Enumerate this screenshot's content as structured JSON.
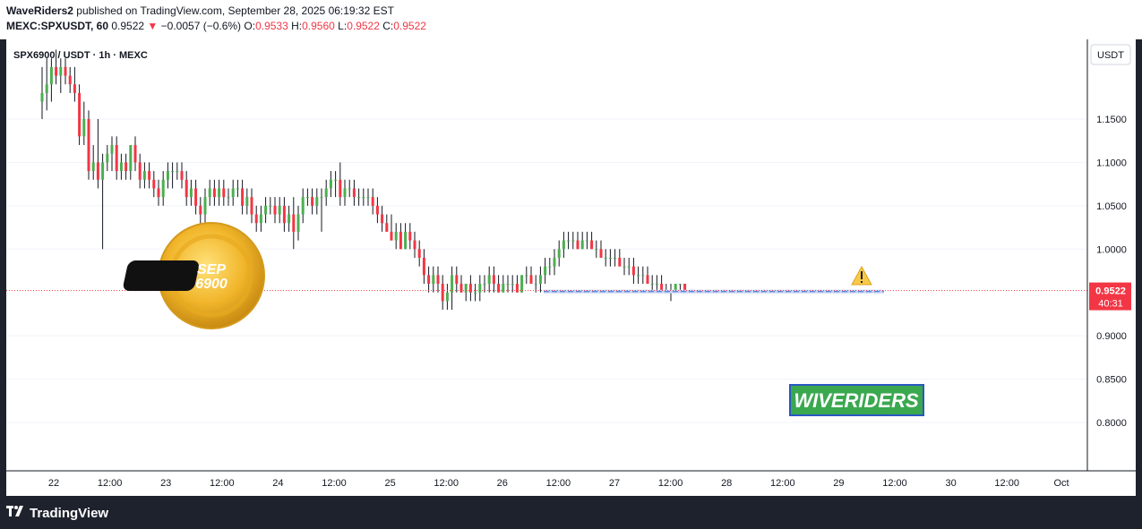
{
  "header": {
    "publisher": "WaveRiders2",
    "published_text": " published on TradingView.com, September 28, 2025 06:19:32 EST",
    "symbol": "MEXC:SPXUSDT, 60",
    "price": "0.9522",
    "change_arrow": "▼",
    "change": "−0.0057 (−0.6%)",
    "o_label": "O:",
    "o_value": "0.9533",
    "h_label": "H:",
    "h_value": "0.9560",
    "l_label": "L:",
    "l_value": "0.9522",
    "c_label": "C:",
    "c_value": "0.9522"
  },
  "footer": {
    "brand": "TradingView"
  },
  "chart_data": {
    "type": "candlestick",
    "title": "SPX6900 / USDT · 1h · MEXC",
    "currency": "USDT",
    "y_ticks": [
      "1.1500",
      "1.1000",
      "1.0500",
      "1.0000",
      "0.9000",
      "0.8500",
      "0.8000"
    ],
    "x_ticks": [
      "22",
      "12:00",
      "23",
      "12:00",
      "24",
      "12:00",
      "25",
      "12:00",
      "26",
      "12:00",
      "27",
      "12:00",
      "28",
      "12:00",
      "29",
      "12:00",
      "30",
      "12:00",
      "Oct"
    ],
    "ylim": [
      0.75,
      1.19
    ],
    "last_price": {
      "value": 0.9522,
      "label": "0.9522",
      "countdown": "40:31"
    },
    "support_level": 0.951,
    "logo_text_1": "SEP",
    "logo_text_2": "6900",
    "watermark": "WIVERIDERS",
    "candles": [
      {
        "o": 1.17,
        "h": 1.21,
        "l": 1.15,
        "c": 1.18
      },
      {
        "o": 1.18,
        "h": 1.22,
        "l": 1.16,
        "c": 1.19
      },
      {
        "o": 1.19,
        "h": 1.22,
        "l": 1.17,
        "c": 1.21
      },
      {
        "o": 1.21,
        "h": 1.23,
        "l": 1.19,
        "c": 1.2
      },
      {
        "o": 1.2,
        "h": 1.22,
        "l": 1.18,
        "c": 1.21
      },
      {
        "o": 1.21,
        "h": 1.22,
        "l": 1.19,
        "c": 1.2
      },
      {
        "o": 1.2,
        "h": 1.21,
        "l": 1.18,
        "c": 1.19
      },
      {
        "o": 1.19,
        "h": 1.21,
        "l": 1.17,
        "c": 1.18
      },
      {
        "o": 1.18,
        "h": 1.19,
        "l": 1.12,
        "c": 1.13
      },
      {
        "o": 1.13,
        "h": 1.17,
        "l": 1.12,
        "c": 1.15
      },
      {
        "o": 1.15,
        "h": 1.16,
        "l": 1.08,
        "c": 1.09
      },
      {
        "o": 1.09,
        "h": 1.12,
        "l": 1.08,
        "c": 1.1
      },
      {
        "o": 1.1,
        "h": 1.15,
        "l": 1.07,
        "c": 1.08
      },
      {
        "o": 1.08,
        "h": 1.11,
        "l": 1.0,
        "c": 1.1
      },
      {
        "o": 1.1,
        "h": 1.12,
        "l": 1.09,
        "c": 1.11
      },
      {
        "o": 1.11,
        "h": 1.13,
        "l": 1.09,
        "c": 1.12
      },
      {
        "o": 1.12,
        "h": 1.13,
        "l": 1.08,
        "c": 1.09
      },
      {
        "o": 1.09,
        "h": 1.11,
        "l": 1.08,
        "c": 1.1
      },
      {
        "o": 1.1,
        "h": 1.11,
        "l": 1.08,
        "c": 1.09
      },
      {
        "o": 1.09,
        "h": 1.12,
        "l": 1.08,
        "c": 1.12
      },
      {
        "o": 1.12,
        "h": 1.13,
        "l": 1.09,
        "c": 1.1
      },
      {
        "o": 1.1,
        "h": 1.11,
        "l": 1.07,
        "c": 1.08
      },
      {
        "o": 1.08,
        "h": 1.1,
        "l": 1.07,
        "c": 1.09
      },
      {
        "o": 1.09,
        "h": 1.1,
        "l": 1.07,
        "c": 1.08
      },
      {
        "o": 1.08,
        "h": 1.09,
        "l": 1.06,
        "c": 1.07
      },
      {
        "o": 1.07,
        "h": 1.08,
        "l": 1.05,
        "c": 1.06
      },
      {
        "o": 1.06,
        "h": 1.09,
        "l": 1.05,
        "c": 1.08
      },
      {
        "o": 1.08,
        "h": 1.1,
        "l": 1.07,
        "c": 1.09
      },
      {
        "o": 1.09,
        "h": 1.1,
        "l": 1.07,
        "c": 1.09
      },
      {
        "o": 1.09,
        "h": 1.1,
        "l": 1.08,
        "c": 1.09
      },
      {
        "o": 1.09,
        "h": 1.1,
        "l": 1.07,
        "c": 1.08
      },
      {
        "o": 1.08,
        "h": 1.09,
        "l": 1.05,
        "c": 1.06
      },
      {
        "o": 1.06,
        "h": 1.08,
        "l": 1.05,
        "c": 1.07
      },
      {
        "o": 1.07,
        "h": 1.08,
        "l": 1.04,
        "c": 1.05
      },
      {
        "o": 1.05,
        "h": 1.06,
        "l": 1.01,
        "c": 1.04
      },
      {
        "o": 1.04,
        "h": 1.07,
        "l": 1.03,
        "c": 1.06
      },
      {
        "o": 1.06,
        "h": 1.08,
        "l": 1.05,
        "c": 1.07
      },
      {
        "o": 1.07,
        "h": 1.08,
        "l": 1.05,
        "c": 1.06
      },
      {
        "o": 1.06,
        "h": 1.08,
        "l": 1.05,
        "c": 1.07
      },
      {
        "o": 1.07,
        "h": 1.08,
        "l": 1.05,
        "c": 1.06
      },
      {
        "o": 1.06,
        "h": 1.07,
        "l": 1.05,
        "c": 1.06
      },
      {
        "o": 1.06,
        "h": 1.08,
        "l": 1.05,
        "c": 1.07
      },
      {
        "o": 1.07,
        "h": 1.08,
        "l": 1.06,
        "c": 1.07
      },
      {
        "o": 1.07,
        "h": 1.08,
        "l": 1.04,
        "c": 1.05
      },
      {
        "o": 1.05,
        "h": 1.07,
        "l": 1.04,
        "c": 1.06
      },
      {
        "o": 1.06,
        "h": 1.07,
        "l": 1.03,
        "c": 1.04
      },
      {
        "o": 1.04,
        "h": 1.05,
        "l": 1.02,
        "c": 1.03
      },
      {
        "o": 1.03,
        "h": 1.05,
        "l": 1.02,
        "c": 1.04
      },
      {
        "o": 1.04,
        "h": 1.06,
        "l": 1.03,
        "c": 1.05
      },
      {
        "o": 1.05,
        "h": 1.06,
        "l": 1.04,
        "c": 1.05
      },
      {
        "o": 1.05,
        "h": 1.06,
        "l": 1.03,
        "c": 1.04
      },
      {
        "o": 1.04,
        "h": 1.06,
        "l": 1.03,
        "c": 1.05
      },
      {
        "o": 1.05,
        "h": 1.06,
        "l": 1.02,
        "c": 1.03
      },
      {
        "o": 1.03,
        "h": 1.05,
        "l": 1.02,
        "c": 1.04
      },
      {
        "o": 1.04,
        "h": 1.06,
        "l": 1.0,
        "c": 1.02
      },
      {
        "o": 1.02,
        "h": 1.05,
        "l": 1.01,
        "c": 1.04
      },
      {
        "o": 1.04,
        "h": 1.07,
        "l": 1.03,
        "c": 1.06
      },
      {
        "o": 1.06,
        "h": 1.07,
        "l": 1.05,
        "c": 1.06
      },
      {
        "o": 1.06,
        "h": 1.07,
        "l": 1.04,
        "c": 1.05
      },
      {
        "o": 1.05,
        "h": 1.07,
        "l": 1.04,
        "c": 1.06
      },
      {
        "o": 1.06,
        "h": 1.07,
        "l": 1.02,
        "c": 1.06
      },
      {
        "o": 1.06,
        "h": 1.08,
        "l": 1.05,
        "c": 1.07
      },
      {
        "o": 1.07,
        "h": 1.09,
        "l": 1.06,
        "c": 1.08
      },
      {
        "o": 1.08,
        "h": 1.09,
        "l": 1.06,
        "c": 1.08
      },
      {
        "o": 1.08,
        "h": 1.1,
        "l": 1.05,
        "c": 1.06
      },
      {
        "o": 1.06,
        "h": 1.08,
        "l": 1.05,
        "c": 1.07
      },
      {
        "o": 1.07,
        "h": 1.08,
        "l": 1.06,
        "c": 1.07
      },
      {
        "o": 1.07,
        "h": 1.08,
        "l": 1.05,
        "c": 1.06
      },
      {
        "o": 1.06,
        "h": 1.07,
        "l": 1.05,
        "c": 1.06
      },
      {
        "o": 1.06,
        "h": 1.07,
        "l": 1.05,
        "c": 1.06
      },
      {
        "o": 1.06,
        "h": 1.07,
        "l": 1.05,
        "c": 1.06
      },
      {
        "o": 1.06,
        "h": 1.07,
        "l": 1.04,
        "c": 1.05
      },
      {
        "o": 1.05,
        "h": 1.06,
        "l": 1.03,
        "c": 1.04
      },
      {
        "o": 1.04,
        "h": 1.05,
        "l": 1.02,
        "c": 1.03
      },
      {
        "o": 1.03,
        "h": 1.04,
        "l": 1.02,
        "c": 1.02
      },
      {
        "o": 1.02,
        "h": 1.04,
        "l": 1.01,
        "c": 1.01
      },
      {
        "o": 1.01,
        "h": 1.03,
        "l": 1.0,
        "c": 1.02
      },
      {
        "o": 1.02,
        "h": 1.03,
        "l": 1.0,
        "c": 1.0
      },
      {
        "o": 1.0,
        "h": 1.03,
        "l": 1.0,
        "c": 1.02
      },
      {
        "o": 1.02,
        "h": 1.03,
        "l": 1.0,
        "c": 1.01
      },
      {
        "o": 1.01,
        "h": 1.02,
        "l": 0.99,
        "c": 1.0
      },
      {
        "o": 1.0,
        "h": 1.01,
        "l": 0.98,
        "c": 0.99
      },
      {
        "o": 0.99,
        "h": 1.0,
        "l": 0.96,
        "c": 0.97
      },
      {
        "o": 0.97,
        "h": 0.98,
        "l": 0.95,
        "c": 0.96
      },
      {
        "o": 0.96,
        "h": 0.98,
        "l": 0.95,
        "c": 0.97
      },
      {
        "o": 0.97,
        "h": 0.98,
        "l": 0.95,
        "c": 0.96
      },
      {
        "o": 0.96,
        "h": 0.97,
        "l": 0.93,
        "c": 0.94
      },
      {
        "o": 0.94,
        "h": 0.96,
        "l": 0.93,
        "c": 0.95
      },
      {
        "o": 0.95,
        "h": 0.98,
        "l": 0.93,
        "c": 0.97
      },
      {
        "o": 0.97,
        "h": 0.98,
        "l": 0.95,
        "c": 0.96
      },
      {
        "o": 0.96,
        "h": 0.97,
        "l": 0.95,
        "c": 0.95
      },
      {
        "o": 0.95,
        "h": 0.96,
        "l": 0.94,
        "c": 0.96
      },
      {
        "o": 0.96,
        "h": 0.97,
        "l": 0.94,
        "c": 0.95
      },
      {
        "o": 0.95,
        "h": 0.96,
        "l": 0.94,
        "c": 0.95
      },
      {
        "o": 0.95,
        "h": 0.97,
        "l": 0.94,
        "c": 0.96
      },
      {
        "o": 0.96,
        "h": 0.97,
        "l": 0.95,
        "c": 0.96
      },
      {
        "o": 0.96,
        "h": 0.98,
        "l": 0.95,
        "c": 0.97
      },
      {
        "o": 0.97,
        "h": 0.98,
        "l": 0.95,
        "c": 0.96
      },
      {
        "o": 0.96,
        "h": 0.97,
        "l": 0.95,
        "c": 0.95
      },
      {
        "o": 0.95,
        "h": 0.97,
        "l": 0.95,
        "c": 0.96
      },
      {
        "o": 0.96,
        "h": 0.97,
        "l": 0.95,
        "c": 0.96
      },
      {
        "o": 0.96,
        "h": 0.97,
        "l": 0.95,
        "c": 0.96
      },
      {
        "o": 0.96,
        "h": 0.97,
        "l": 0.95,
        "c": 0.95
      },
      {
        "o": 0.95,
        "h": 0.97,
        "l": 0.95,
        "c": 0.97
      },
      {
        "o": 0.97,
        "h": 0.98,
        "l": 0.96,
        "c": 0.97
      },
      {
        "o": 0.97,
        "h": 0.98,
        "l": 0.96,
        "c": 0.96
      },
      {
        "o": 0.96,
        "h": 0.97,
        "l": 0.95,
        "c": 0.96
      },
      {
        "o": 0.96,
        "h": 0.98,
        "l": 0.95,
        "c": 0.97
      },
      {
        "o": 0.97,
        "h": 0.99,
        "l": 0.96,
        "c": 0.98
      },
      {
        "o": 0.98,
        "h": 0.99,
        "l": 0.97,
        "c": 0.98
      },
      {
        "o": 0.98,
        "h": 1.0,
        "l": 0.97,
        "c": 0.99
      },
      {
        "o": 0.99,
        "h": 1.01,
        "l": 0.98,
        "c": 1.0
      },
      {
        "o": 1.0,
        "h": 1.02,
        "l": 0.99,
        "c": 1.01
      },
      {
        "o": 1.01,
        "h": 1.02,
        "l": 1.0,
        "c": 1.01
      },
      {
        "o": 1.01,
        "h": 1.02,
        "l": 1.0,
        "c": 1.01
      },
      {
        "o": 1.01,
        "h": 1.02,
        "l": 1.0,
        "c": 1.0
      },
      {
        "o": 1.0,
        "h": 1.02,
        "l": 1.0,
        "c": 1.01
      },
      {
        "o": 1.01,
        "h": 1.02,
        "l": 1.0,
        "c": 1.01
      },
      {
        "o": 1.01,
        "h": 1.02,
        "l": 1.0,
        "c": 1.0
      },
      {
        "o": 1.0,
        "h": 1.01,
        "l": 0.99,
        "c": 1.0
      },
      {
        "o": 1.0,
        "h": 1.01,
        "l": 0.99,
        "c": 0.99
      },
      {
        "o": 0.99,
        "h": 1.0,
        "l": 0.98,
        "c": 0.99
      },
      {
        "o": 0.99,
        "h": 1.0,
        "l": 0.98,
        "c": 0.99
      },
      {
        "o": 0.99,
        "h": 1.0,
        "l": 0.98,
        "c": 0.99
      },
      {
        "o": 0.99,
        "h": 1.0,
        "l": 0.98,
        "c": 0.98
      },
      {
        "o": 0.98,
        "h": 0.99,
        "l": 0.97,
        "c": 0.98
      },
      {
        "o": 0.98,
        "h": 0.99,
        "l": 0.97,
        "c": 0.98
      },
      {
        "o": 0.98,
        "h": 0.99,
        "l": 0.96,
        "c": 0.97
      },
      {
        "o": 0.97,
        "h": 0.98,
        "l": 0.96,
        "c": 0.97
      },
      {
        "o": 0.97,
        "h": 0.98,
        "l": 0.96,
        "c": 0.97
      },
      {
        "o": 0.97,
        "h": 0.98,
        "l": 0.96,
        "c": 0.96
      },
      {
        "o": 0.96,
        "h": 0.97,
        "l": 0.95,
        "c": 0.96
      },
      {
        "o": 0.96,
        "h": 0.97,
        "l": 0.95,
        "c": 0.96
      },
      {
        "o": 0.96,
        "h": 0.97,
        "l": 0.95,
        "c": 0.95
      },
      {
        "o": 0.95,
        "h": 0.96,
        "l": 0.95,
        "c": 0.95
      },
      {
        "o": 0.95,
        "h": 0.96,
        "l": 0.94,
        "c": 0.95
      },
      {
        "o": 0.95,
        "h": 0.96,
        "l": 0.95,
        "c": 0.96
      },
      {
        "o": 0.96,
        "h": 0.96,
        "l": 0.95,
        "c": 0.96
      },
      {
        "o": 0.96,
        "h": 0.96,
        "l": 0.95,
        "c": 0.9522
      }
    ],
    "colors": {
      "up": "#4caf50",
      "down": "#f23645",
      "support": "#3f6fd6",
      "grid": "#f0f3fa"
    }
  }
}
